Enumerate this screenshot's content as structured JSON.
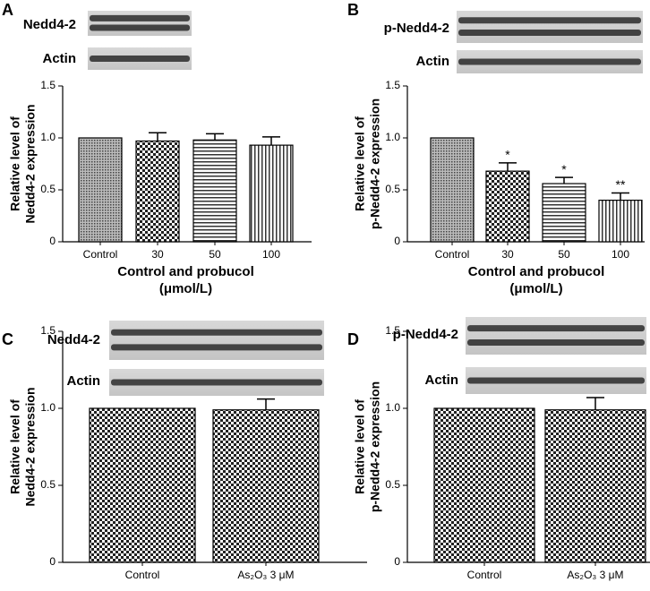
{
  "chart_data": [
    {
      "type": "bar",
      "panel": "A",
      "blots": [
        "Nedd4-2",
        "Actin"
      ],
      "ylabel": [
        "Relative level of",
        "Nedd4-2 expression"
      ],
      "xlabel": [
        "Control and probucol",
        "(μmol/L)"
      ],
      "categories": [
        "Control",
        "30",
        "50",
        "100"
      ],
      "values": [
        1.0,
        0.97,
        0.98,
        0.93
      ],
      "errors": [
        0,
        0.08,
        0.06,
        0.08
      ],
      "patterns": [
        "dots",
        "checker",
        "hlines",
        "vlines"
      ],
      "ylim": [
        0,
        1.5
      ],
      "yticks": [
        0,
        0.5,
        {
          "value": 1,
          "label": "1.0"
        },
        1.5
      ]
    },
    {
      "type": "bar",
      "panel": "B",
      "blots": [
        "p-Nedd4-2",
        "Actin"
      ],
      "ylabel": [
        "Relative level of",
        "p-Nedd4-2 expression"
      ],
      "xlabel": [
        "Control and probucol",
        "(μmol/L)"
      ],
      "categories": [
        "Control",
        "30",
        "50",
        "100"
      ],
      "values": [
        1.0,
        0.68,
        0.56,
        0.4
      ],
      "errors": [
        0,
        0.08,
        0.06,
        0.07
      ],
      "annotations": [
        null,
        "*",
        "*",
        "**"
      ],
      "patterns": [
        "dots",
        "checker",
        "hlines",
        "vlines"
      ],
      "ylim": [
        0,
        1.5
      ],
      "yticks": [
        0,
        0.5,
        {
          "value": 1,
          "label": "1.0"
        },
        1.5
      ]
    },
    {
      "type": "bar",
      "panel": "C",
      "blots": [
        "Nedd4-2",
        "Actin"
      ],
      "ylabel": [
        "Relative level of",
        "Nedd4-2 expression"
      ],
      "categories": [
        "Control",
        "As₂O₃ 3 μM"
      ],
      "values": [
        1.0,
        0.99
      ],
      "errors": [
        0,
        0.07
      ],
      "patterns": [
        "checker",
        "checker"
      ],
      "ylim": [
        0,
        1.5
      ],
      "yticks": [
        0,
        0.5,
        {
          "value": 1,
          "label": "1.0"
        },
        1.5
      ]
    },
    {
      "type": "bar",
      "panel": "D",
      "blots": [
        "p-Nedd4-2",
        "Actin"
      ],
      "ylabel": [
        "Relative level of",
        "p-Nedd4-2 expression"
      ],
      "categories": [
        "Control",
        "As₂O₃ 3 μM"
      ],
      "values": [
        1.0,
        0.99
      ],
      "errors": [
        0,
        0.08
      ],
      "patterns": [
        "checker",
        "checker"
      ],
      "ylim": [
        0,
        1.5
      ],
      "yticks": [
        0,
        0.5,
        {
          "value": 1,
          "label": "1.0"
        },
        1.5
      ]
    }
  ]
}
